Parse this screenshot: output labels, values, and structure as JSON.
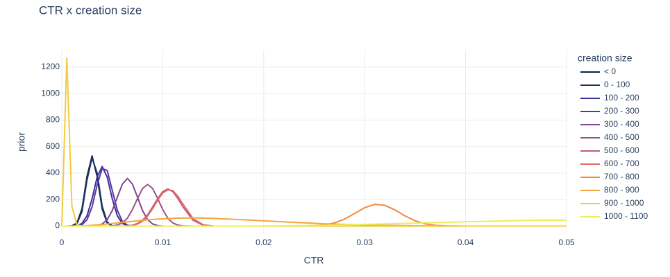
{
  "chart_data": {
    "type": "line",
    "title": "CTR x creation size",
    "x_label": "CTR",
    "y_label": "prior",
    "legend_title": "creation size",
    "legend_position": "right",
    "grid": true,
    "x": [
      0,
      0.0005,
      0.001,
      0.0015,
      0.002,
      0.0025,
      0.003,
      0.0035,
      0.004,
      0.0045,
      0.005,
      0.0055,
      0.006,
      0.0065,
      0.007,
      0.0075,
      0.008,
      0.0085,
      0.009,
      0.0095,
      0.01,
      0.0105,
      0.011,
      0.0115,
      0.012,
      0.013,
      0.014,
      0.015,
      0.016,
      0.018,
      0.02,
      0.022,
      0.024,
      0.026,
      0.027,
      0.028,
      0.029,
      0.03,
      0.031,
      0.032,
      0.033,
      0.034,
      0.035,
      0.036,
      0.037,
      0.038,
      0.04,
      0.042,
      0.044,
      0.046,
      0.048,
      0.05
    ],
    "xlim": [
      0,
      0.05
    ],
    "xticks": [
      0,
      0.01,
      0.02,
      0.03,
      0.04,
      0.05
    ],
    "ylim": [
      -60,
      1330
    ],
    "yticks": [
      0,
      200,
      400,
      600,
      800,
      1000,
      1200
    ],
    "series": [
      {
        "name": "< 0",
        "color": "#0f2538",
        "values": [
          0,
          0,
          2,
          23,
          130,
          375,
          530,
          375,
          130,
          23,
          2,
          0,
          0,
          0,
          0,
          0,
          0,
          0,
          0,
          0,
          0,
          0,
          0,
          0,
          0,
          0,
          0,
          0,
          0,
          0,
          0,
          0,
          0,
          0,
          0,
          0,
          0,
          0,
          0,
          0,
          0,
          0,
          0,
          0,
          0,
          0,
          0,
          0,
          0,
          0,
          0,
          0
        ]
      },
      {
        "name": "0 - 100",
        "color": "#1c326e",
        "values": [
          0,
          0,
          1,
          18,
          110,
          350,
          515,
          400,
          150,
          30,
          3,
          0,
          0,
          0,
          0,
          0,
          0,
          0,
          0,
          0,
          0,
          0,
          0,
          0,
          0,
          0,
          0,
          0,
          0,
          0,
          0,
          0,
          0,
          0,
          0,
          0,
          0,
          0,
          0,
          0,
          0,
          0,
          0,
          0,
          0,
          0,
          0,
          0,
          0,
          0,
          0,
          0
        ]
      },
      {
        "name": "100 - 200",
        "color": "#3a2f9c",
        "values": [
          0,
          0,
          0,
          2,
          20,
          78,
          206,
          370,
          450,
          370,
          206,
          78,
          20,
          4,
          0,
          0,
          0,
          0,
          0,
          0,
          0,
          0,
          0,
          0,
          0,
          0,
          0,
          0,
          0,
          0,
          0,
          0,
          0,
          0,
          0,
          0,
          0,
          0,
          0,
          0,
          0,
          0,
          0,
          0,
          0,
          0,
          0,
          0,
          0,
          0,
          0,
          0
        ]
      },
      {
        "name": "200 - 300",
        "color": "#5a37a0",
        "values": [
          0,
          0,
          0,
          0,
          10,
          48,
          145,
          310,
          435,
          420,
          270,
          120,
          35,
          7,
          1,
          0,
          0,
          0,
          0,
          0,
          0,
          0,
          0,
          0,
          0,
          0,
          0,
          0,
          0,
          0,
          0,
          0,
          0,
          0,
          0,
          0,
          0,
          0,
          0,
          0,
          0,
          0,
          0,
          0,
          0,
          0,
          0,
          0,
          0,
          0,
          0,
          0
        ]
      },
      {
        "name": "300 - 400",
        "color": "#7e4493",
        "values": [
          0,
          0,
          0,
          0,
          0,
          0,
          1,
          4,
          16,
          49,
          117,
          218,
          317,
          360,
          317,
          218,
          117,
          49,
          16,
          4,
          0,
          0,
          0,
          0,
          0,
          0,
          0,
          0,
          0,
          0,
          0,
          0,
          0,
          0,
          0,
          0,
          0,
          0,
          0,
          0,
          0,
          0,
          0,
          0,
          0,
          0,
          0,
          0,
          0,
          0,
          0,
          0
        ]
      },
      {
        "name": "400 - 500",
        "color": "#9d5086",
        "values": [
          0,
          0,
          0,
          0,
          0,
          0,
          0,
          0,
          0,
          0,
          2,
          8,
          24,
          60,
          125,
          208,
          284,
          315,
          284,
          208,
          125,
          60,
          24,
          8,
          2,
          0,
          0,
          0,
          0,
          0,
          0,
          0,
          0,
          0,
          0,
          0,
          0,
          0,
          0,
          0,
          0,
          0,
          0,
          0,
          0,
          0,
          0,
          0,
          0,
          0,
          0,
          0
        ]
      },
      {
        "name": "500 - 600",
        "color": "#c25b7b",
        "values": [
          0,
          0,
          0,
          0,
          0,
          0,
          0,
          0,
          0,
          0,
          0,
          0,
          1,
          2,
          7,
          20,
          44,
          86,
          145,
          208,
          260,
          280,
          260,
          208,
          145,
          44,
          7,
          1,
          0,
          0,
          0,
          0,
          0,
          0,
          0,
          0,
          0,
          0,
          0,
          0,
          0,
          0,
          0,
          0,
          0,
          0,
          0,
          0,
          0,
          0,
          0,
          0
        ]
      },
      {
        "name": "600 - 700",
        "color": "#df6a62",
        "values": [
          0,
          0,
          0,
          0,
          0,
          0,
          0,
          0,
          0,
          0,
          0,
          0,
          0,
          0,
          5,
          16,
          38,
          76,
          132,
          196,
          250,
          273,
          268,
          226,
          166,
          58,
          10,
          1,
          0,
          0,
          0,
          0,
          0,
          0,
          0,
          0,
          0,
          0,
          0,
          0,
          0,
          0,
          0,
          0,
          0,
          0,
          0,
          0,
          0,
          0,
          0,
          0
        ]
      },
      {
        "name": "700 - 800",
        "color": "#f28a3d",
        "values": [
          0,
          0,
          0,
          0,
          0,
          0,
          0,
          0,
          0,
          0,
          0,
          0,
          0,
          0,
          0,
          0,
          0,
          0,
          0,
          0,
          0,
          0,
          0,
          0,
          0,
          0,
          0,
          0,
          0,
          0,
          0,
          0,
          1,
          9,
          24,
          53,
          95,
          139,
          164,
          157,
          122,
          77,
          40,
          17,
          6,
          2,
          0,
          0,
          0,
          0,
          0,
          0
        ]
      },
      {
        "name": "800 - 900",
        "color": "#f6a43c",
        "values": [
          0,
          0,
          0,
          1,
          2,
          4,
          6,
          9,
          12,
          16,
          20,
          24,
          28,
          32,
          36,
          40,
          43,
          47,
          50,
          53,
          55,
          57,
          59,
          60,
          61,
          62,
          60,
          58,
          55,
          48,
          40,
          32,
          25,
          18,
          15,
          13,
          11,
          9,
          7,
          6,
          5,
          4,
          3,
          2,
          2,
          1,
          0,
          0,
          0,
          0,
          0,
          0
        ]
      },
      {
        "name": "900 - 1000",
        "color": "#f4cb3d",
        "values": [
          0,
          1270,
          150,
          10,
          0,
          0,
          0,
          0,
          0,
          0,
          0,
          0,
          0,
          0,
          0,
          0,
          0,
          0,
          0,
          0,
          0,
          0,
          0,
          0,
          0,
          0,
          0,
          0,
          0,
          0,
          0,
          0,
          0,
          0,
          0,
          0,
          0,
          0,
          0,
          0,
          0,
          0,
          0,
          0,
          0,
          0,
          0,
          0,
          0,
          0,
          0,
          0
        ]
      },
      {
        "name": "1000 - 1100",
        "color": "#e6f05a",
        "values": [
          0,
          0,
          0,
          0,
          0,
          0,
          0,
          0,
          0,
          0,
          0,
          0,
          0,
          0,
          0,
          0,
          0,
          0,
          0,
          0,
          0,
          0,
          0,
          0,
          0,
          0,
          0,
          0,
          0,
          0,
          1,
          2,
          4,
          6,
          7,
          9,
          11,
          13,
          15,
          17,
          19,
          21,
          23,
          25,
          27,
          29,
          33,
          37,
          40,
          43,
          44,
          45
        ]
      }
    ]
  }
}
